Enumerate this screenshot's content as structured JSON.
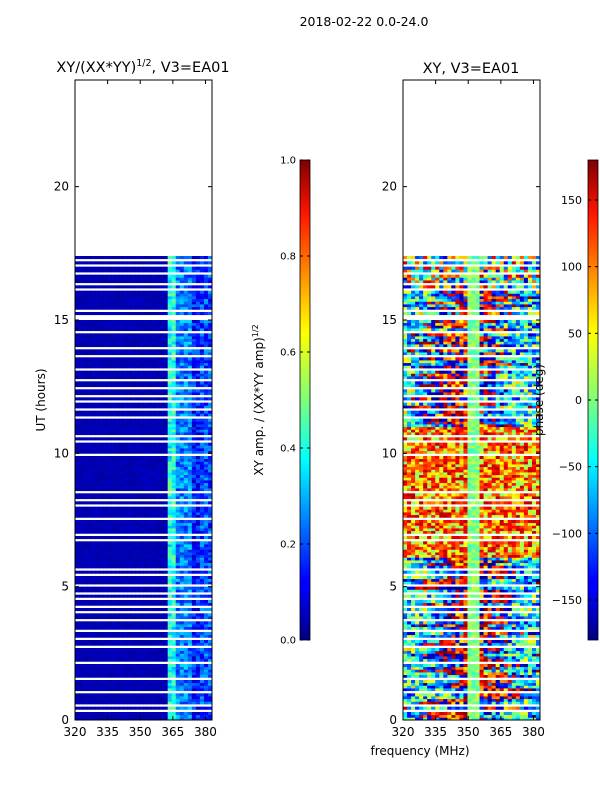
{
  "figure": {
    "suptitle": "2018-02-22 0.0-24.0",
    "xlabel": "frequency (MHz)"
  },
  "chart_data": [
    {
      "type": "heatmap",
      "title": "XY/(XX*YY)",
      "title_superscript": "1/2",
      "title_suffix": ", V3=EA01",
      "xlabel": "",
      "ylabel": "UT (hours)",
      "xlim": [
        320,
        383
      ],
      "ylim": [
        0,
        24
      ],
      "xticks": [
        320,
        335,
        350,
        365,
        380
      ],
      "yticks": [
        0,
        5,
        10,
        15,
        20
      ],
      "data_extent_hours": [
        0,
        17.5
      ],
      "colorbar": {
        "label": "XY amp. / (XX*YY amp)",
        "label_superscript": "1/2",
        "range": [
          0.0,
          1.0
        ],
        "ticks": [
          "0.0",
          "0.2",
          "0.4",
          "0.6",
          "0.8",
          "1.0"
        ],
        "colormap": "jet"
      },
      "description_bands": [
        {
          "freq_range": [
            320,
            361
          ],
          "level": 0.05
        },
        {
          "freq_range": [
            361,
            366
          ],
          "level": 0.4
        },
        {
          "freq_range": [
            366,
            372
          ],
          "level": 0.25
        },
        {
          "freq_range": [
            372,
            376
          ],
          "level": 0.15
        },
        {
          "freq_range": [
            376,
            383
          ],
          "level": 0.2
        }
      ]
    },
    {
      "type": "heatmap",
      "title": "XY, V3=EA01",
      "xlabel": "frequency (MHz)",
      "ylabel": "",
      "xlim": [
        320,
        383
      ],
      "ylim": [
        0,
        24
      ],
      "xticks": [
        320,
        335,
        350,
        365,
        380
      ],
      "yticks": [
        0,
        5,
        10,
        15,
        20
      ],
      "data_extent_hours": [
        0,
        17.5
      ],
      "colorbar": {
        "label": "phase (deg)",
        "range": [
          -180,
          180
        ],
        "ticks": [
          "-150",
          "-100",
          "-50",
          "0",
          "50",
          "100",
          "150"
        ],
        "tick_values": [
          -150,
          -100,
          -50,
          0,
          50,
          100,
          150
        ],
        "colormap": "jet"
      }
    }
  ]
}
